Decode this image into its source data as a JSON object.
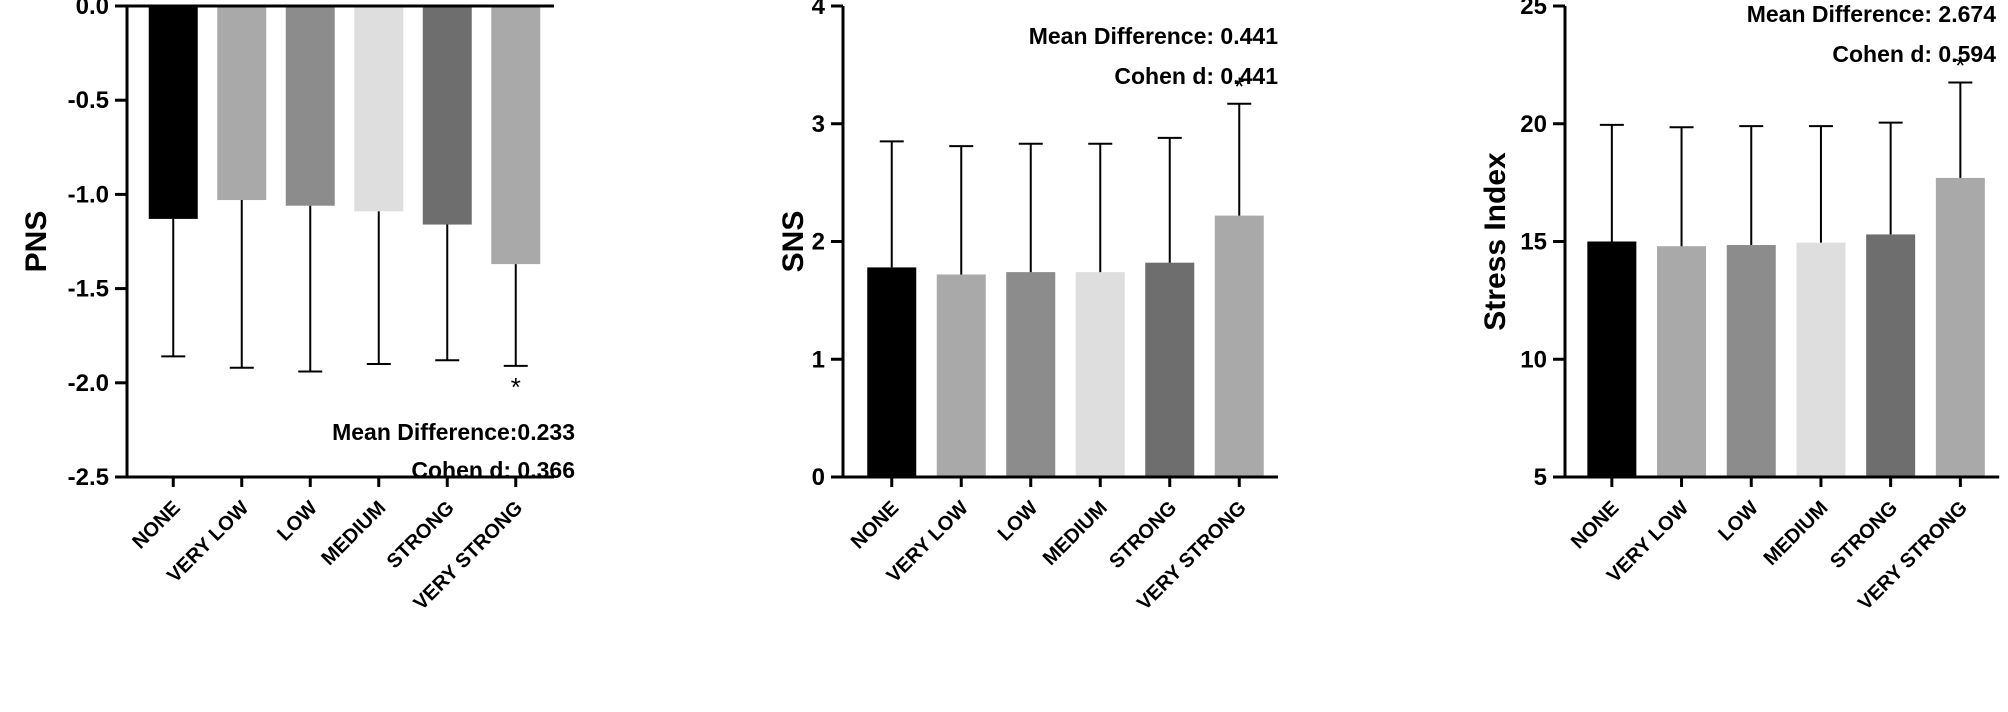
{
  "figure_title": "",
  "chart_data": [
    {
      "type": "bar",
      "title": "",
      "xlabel": "",
      "ylabel": "PNS",
      "ylim": [
        -2.5,
        0.0
      ],
      "yticks": [
        0.0,
        -0.5,
        -1.0,
        -1.5,
        -2.0,
        -2.5
      ],
      "ytick_labels": [
        "0.0",
        "-0.5",
        "-1.0",
        "-1.5",
        "-2.0",
        "-2.5"
      ],
      "categories": [
        "NONE",
        "VERY LOW",
        "LOW",
        "MEDIUM",
        "STRONG",
        "VERY STRONG"
      ],
      "values": [
        -1.13,
        -1.03,
        -1.06,
        -1.09,
        -1.16,
        -1.37
      ],
      "error": [
        0.73,
        0.89,
        0.88,
        0.81,
        0.72,
        0.54
      ],
      "error_direction": "down",
      "bar_colors": [
        "#000000",
        "#a9a9a9",
        "#8c8c8c",
        "#dedede",
        "#6e6e6e",
        "#a9a9a9"
      ],
      "significance": [
        {
          "category": "VERY STRONG",
          "mark": "*"
        }
      ],
      "annotations": [
        "Mean Difference:0.233",
        "Cohen d: 0.366"
      ]
    },
    {
      "type": "bar",
      "title": "",
      "xlabel": "",
      "ylabel": "SNS",
      "ylim": [
        0,
        4
      ],
      "yticks": [
        0,
        1,
        2,
        3,
        4
      ],
      "ytick_labels": [
        "0",
        "1",
        "2",
        "3",
        "4"
      ],
      "categories": [
        "NONE",
        "VERY LOW",
        "LOW",
        "MEDIUM",
        "STRONG",
        "VERY STRONG"
      ],
      "values": [
        1.78,
        1.72,
        1.74,
        1.74,
        1.82,
        2.22
      ],
      "error": [
        1.07,
        1.09,
        1.09,
        1.09,
        1.06,
        0.95
      ],
      "error_direction": "up",
      "bar_colors": [
        "#000000",
        "#a9a9a9",
        "#8c8c8c",
        "#dedede",
        "#6e6e6e",
        "#a9a9a9"
      ],
      "significance": [
        {
          "category": "VERY STRONG",
          "mark": "*"
        }
      ],
      "annotations": [
        "Mean Difference: 0.441",
        "Cohen d: 0.441"
      ]
    },
    {
      "type": "bar",
      "title": "",
      "xlabel": "",
      "ylabel": "Stress Index",
      "ylim": [
        5,
        25
      ],
      "yticks": [
        5,
        10,
        15,
        20,
        25
      ],
      "ytick_labels": [
        "5",
        "10",
        "15",
        "20",
        "25"
      ],
      "categories": [
        "NONE",
        "VERY LOW",
        "LOW",
        "MEDIUM",
        "STRONG",
        "VERY STRONG"
      ],
      "values": [
        15.0,
        14.8,
        14.85,
        14.95,
        15.3,
        17.7
      ],
      "error": [
        4.95,
        5.05,
        5.05,
        4.95,
        4.75,
        4.05
      ],
      "error_direction": "up",
      "bar_colors": [
        "#000000",
        "#a9a9a9",
        "#8c8c8c",
        "#dedede",
        "#6e6e6e",
        "#a9a9a9"
      ],
      "significance": [
        {
          "category": "VERY STRONG",
          "mark": "*"
        }
      ],
      "annotations": [
        "Mean Difference: 2.674",
        "Cohen d: 0.594"
      ]
    }
  ]
}
